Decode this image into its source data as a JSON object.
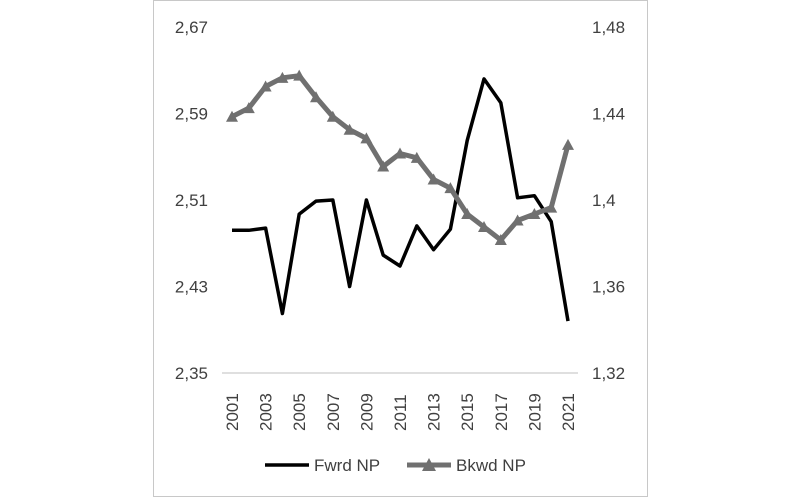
{
  "chart_data": {
    "type": "line",
    "title": "",
    "xlabel": "",
    "ylabel": "",
    "x": [
      2001,
      2002,
      2003,
      2004,
      2005,
      2006,
      2007,
      2008,
      2009,
      2010,
      2011,
      2012,
      2013,
      2014,
      2015,
      2016,
      2017,
      2018,
      2019,
      2020,
      2021
    ],
    "x_tick_labels": [
      "2001",
      "2003",
      "2005",
      "2007",
      "2009",
      "2011",
      "2013",
      "2015",
      "2017",
      "2019",
      "2021"
    ],
    "y_left": {
      "ylim": [
        2.35,
        2.67
      ],
      "tick_labels": [
        "2,35",
        "2,43",
        "2,51",
        "2,59",
        "2,67"
      ]
    },
    "y_right": {
      "ylim": [
        1.32,
        1.48
      ],
      "tick_labels": [
        "1,32",
        "1,36",
        "1,4",
        "1,44",
        "1,48"
      ]
    },
    "grid": false,
    "legend_position": "bottom",
    "series": [
      {
        "name": "Fwrd NP",
        "axis": "left",
        "color": "#000000",
        "marker": "none",
        "values": [
          2.482,
          2.482,
          2.484,
          2.405,
          2.497,
          2.509,
          2.51,
          2.43,
          2.51,
          2.459,
          2.449,
          2.486,
          2.464,
          2.483,
          2.565,
          2.622,
          2.6,
          2.512,
          2.514,
          2.49,
          2.398
        ]
      },
      {
        "name": "Bkwd NP",
        "axis": "right",
        "color": "#707070",
        "marker": "triangle",
        "values": [
          1.4385,
          1.4425,
          1.4525,
          1.4565,
          1.4575,
          1.4475,
          1.4385,
          1.4325,
          1.4285,
          1.4155,
          1.4215,
          1.4195,
          1.4095,
          1.4055,
          1.3935,
          1.3875,
          1.3815,
          1.3905,
          1.3935,
          1.3965,
          1.4255
        ]
      }
    ]
  }
}
